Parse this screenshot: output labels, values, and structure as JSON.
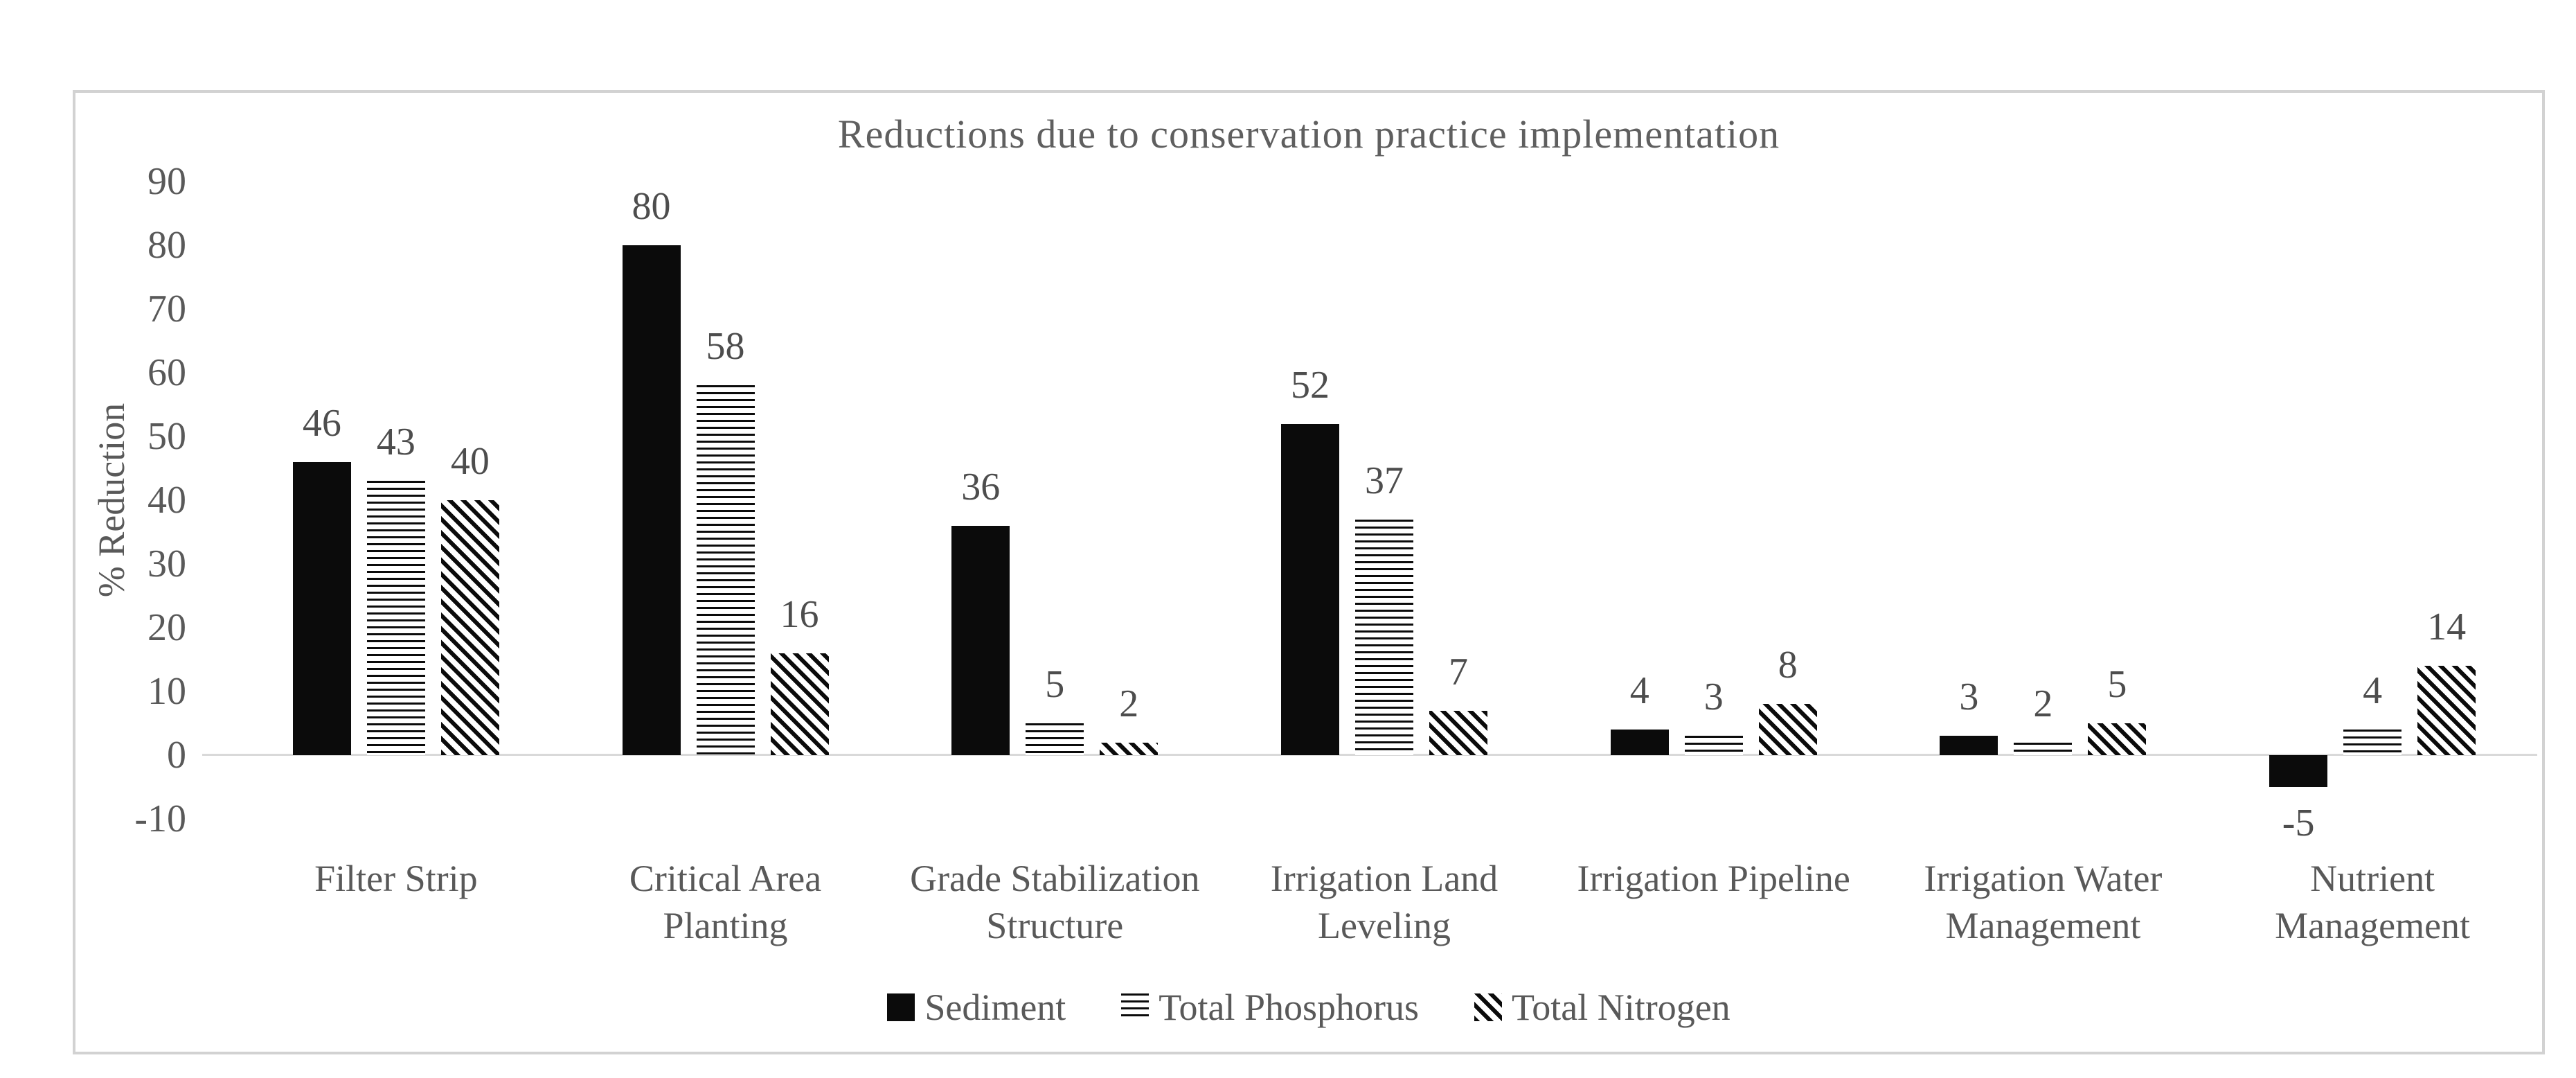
{
  "chart_data": {
    "type": "bar",
    "title": "Reductions due to conservation practice implementation",
    "xlabel": "",
    "ylabel": "% Reduction",
    "ylim": [
      -10,
      90
    ],
    "yticks": [
      90,
      80,
      70,
      60,
      50,
      40,
      30,
      20,
      10,
      0,
      -10
    ],
    "grid": false,
    "legend_position": "bottom",
    "categories": [
      "Filter Strip",
      "Critical Area\nPlanting",
      "Grade Stabilization\nStructure",
      "Irrigation Land\nLeveling",
      "Irrigation Pipeline",
      "Irrigation Water\nManagement",
      "Nutrient\nManagement"
    ],
    "series": [
      {
        "name": "Sediment",
        "pattern": "solid",
        "values": [
          46,
          80,
          36,
          52,
          4,
          3,
          -5
        ]
      },
      {
        "name": "Total Phosphorus",
        "pattern": "hlines",
        "values": [
          43,
          58,
          5,
          37,
          3,
          2,
          4
        ]
      },
      {
        "name": "Total Nitrogen",
        "pattern": "diag",
        "values": [
          40,
          16,
          2,
          7,
          8,
          5,
          14
        ]
      }
    ],
    "colors": {
      "bar_fill": "#0b0b0b",
      "text": "#595959",
      "data_label_text": "#4d4d4d",
      "axis_line": "#d9d9d9",
      "frame_border": "#d2d2d2",
      "background": "#ffffff"
    }
  }
}
